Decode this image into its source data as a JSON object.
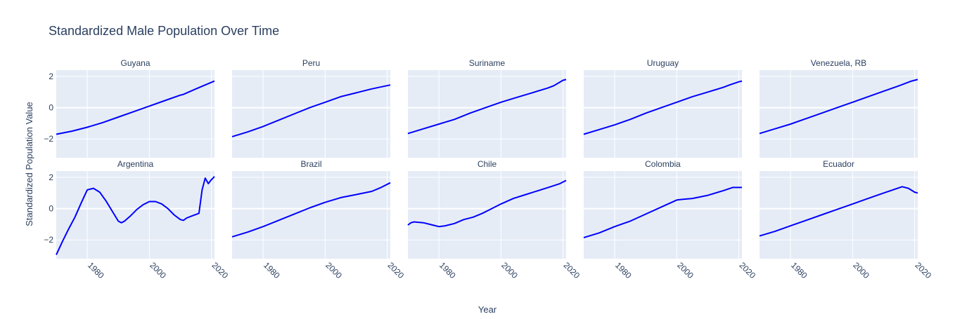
{
  "chart_data": {
    "type": "line",
    "title": "Standardized Male Population Over Time",
    "xlabel": "Year",
    "ylabel": "Standardized Population Value",
    "xlim": [
      1970,
      2021
    ],
    "ylim": [
      -3.2,
      2.4
    ],
    "x_ticks": [
      1980,
      2000,
      2020
    ],
    "y_ticks": [
      -2,
      0,
      2
    ],
    "grid": true,
    "legend": "none",
    "line_color": "#0000ff",
    "plot_bg_color": "#e5ecf6",
    "panels": [
      {
        "name": "Guyana",
        "x": [
          1970,
          1975,
          1980,
          1985,
          1990,
          1995,
          2000,
          2005,
          2010,
          2011,
          2015,
          2021
        ],
        "y": [
          -1.7,
          -1.5,
          -1.25,
          -0.95,
          -0.6,
          -0.25,
          0.1,
          0.45,
          0.8,
          0.85,
          1.2,
          1.7
        ]
      },
      {
        "name": "Peru",
        "x": [
          1970,
          1975,
          1980,
          1985,
          1990,
          1995,
          2000,
          2005,
          2010,
          2015,
          2021
        ],
        "y": [
          -1.85,
          -1.55,
          -1.2,
          -0.8,
          -0.4,
          0.0,
          0.35,
          0.7,
          0.95,
          1.2,
          1.45
        ]
      },
      {
        "name": "Suriname",
        "x": [
          1970,
          1975,
          1980,
          1985,
          1990,
          1995,
          2000,
          2005,
          2010,
          2015,
          2017,
          2020,
          2021
        ],
        "y": [
          -1.65,
          -1.35,
          -1.05,
          -0.75,
          -0.35,
          0.0,
          0.35,
          0.65,
          0.95,
          1.25,
          1.4,
          1.75,
          1.8
        ]
      },
      {
        "name": "Uruguay",
        "x": [
          1970,
          1975,
          1980,
          1985,
          1990,
          1995,
          2000,
          2005,
          2010,
          2015,
          2017,
          2020,
          2021
        ],
        "y": [
          -1.7,
          -1.4,
          -1.1,
          -0.75,
          -0.35,
          0.0,
          0.35,
          0.7,
          1.0,
          1.3,
          1.45,
          1.65,
          1.7
        ]
      },
      {
        "name": "Venezuela, RB",
        "x": [
          1970,
          1975,
          1980,
          1985,
          1990,
          1995,
          2000,
          2005,
          2010,
          2015,
          2019,
          2021
        ],
        "y": [
          -1.65,
          -1.35,
          -1.05,
          -0.7,
          -0.35,
          0.0,
          0.35,
          0.7,
          1.05,
          1.4,
          1.7,
          1.8
        ]
      },
      {
        "name": "Argentina",
        "x": [
          1970,
          1972,
          1974,
          1976,
          1978,
          1980,
          1982,
          1984,
          1986,
          1988,
          1990,
          1991,
          1992,
          1994,
          1996,
          1998,
          2000,
          2002,
          2004,
          2006,
          2008,
          2010,
          2011,
          2012,
          2014,
          2016,
          2017,
          2018,
          2019,
          2020,
          2021
        ],
        "y": [
          -2.95,
          -2.1,
          -1.3,
          -0.55,
          0.35,
          1.2,
          1.3,
          1.05,
          0.5,
          -0.15,
          -0.8,
          -0.9,
          -0.8,
          -0.45,
          -0.05,
          0.25,
          0.45,
          0.45,
          0.3,
          0.0,
          -0.4,
          -0.7,
          -0.75,
          -0.6,
          -0.45,
          -0.3,
          1.2,
          1.95,
          1.6,
          1.85,
          2.05
        ]
      },
      {
        "name": "Brazil",
        "x": [
          1970,
          1975,
          1980,
          1985,
          1990,
          1995,
          2000,
          2005,
          2010,
          2015,
          2018,
          2021
        ],
        "y": [
          -1.8,
          -1.5,
          -1.15,
          -0.75,
          -0.35,
          0.05,
          0.4,
          0.7,
          0.9,
          1.1,
          1.35,
          1.65
        ]
      },
      {
        "name": "Chile",
        "x": [
          1970,
          1971,
          1972,
          1975,
          1978,
          1980,
          1982,
          1985,
          1988,
          1991,
          1994,
          1997,
          2000,
          2004,
          2008,
          2012,
          2016,
          2019,
          2021
        ],
        "y": [
          -1.05,
          -0.9,
          -0.85,
          -0.9,
          -1.05,
          -1.15,
          -1.1,
          -0.95,
          -0.7,
          -0.55,
          -0.3,
          0.0,
          0.3,
          0.65,
          0.9,
          1.15,
          1.4,
          1.6,
          1.8
        ]
      },
      {
        "name": "Colombia",
        "x": [
          1970,
          1975,
          1980,
          1985,
          1990,
          1995,
          2000,
          2002,
          2005,
          2010,
          2015,
          2018,
          2021
        ],
        "y": [
          -1.85,
          -1.55,
          -1.15,
          -0.8,
          -0.35,
          0.1,
          0.55,
          0.6,
          0.65,
          0.85,
          1.15,
          1.35,
          1.35
        ]
      },
      {
        "name": "Ecuador",
        "x": [
          1970,
          1975,
          1980,
          1985,
          1990,
          1995,
          2000,
          2005,
          2010,
          2013,
          2016,
          2018,
          2020,
          2021
        ],
        "y": [
          -1.75,
          -1.45,
          -1.1,
          -0.75,
          -0.4,
          -0.05,
          0.3,
          0.65,
          1.0,
          1.2,
          1.4,
          1.3,
          1.05,
          1.0
        ]
      }
    ]
  }
}
